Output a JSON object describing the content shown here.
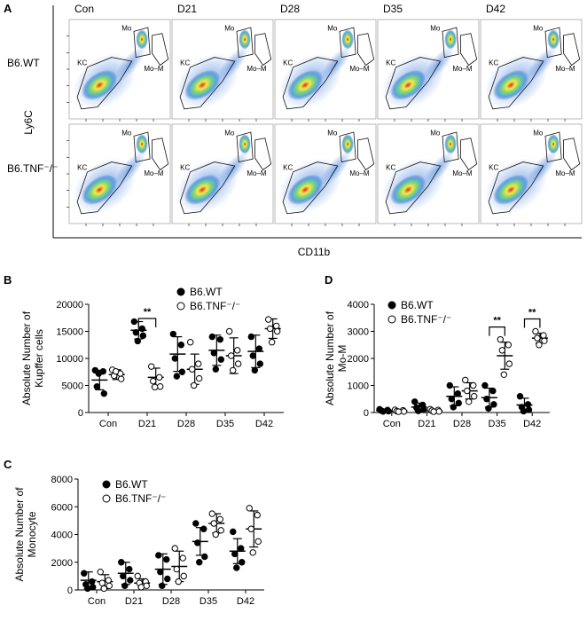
{
  "panelA": {
    "letter": "A",
    "columns": [
      "Con",
      "D21",
      "D28",
      "D35",
      "D42"
    ],
    "rows": [
      "B6.WT",
      "B6.TNF⁻/⁻"
    ],
    "gates": {
      "kc": "KC",
      "mo": "Mo",
      "mom": "Mo–M"
    },
    "xlabel": "CD11b",
    "ylabel": "Ly6C"
  },
  "chart_data": [
    {
      "panel": "B",
      "type": "scatter",
      "categories": [
        "Con",
        "D21",
        "D28",
        "D35",
        "D42"
      ],
      "ylabel": "Absolute Number of Kupffer cells",
      "ylabel_lines": [
        "Absolute Number of",
        "Kupffer cells"
      ],
      "ylim": [
        0,
        20000
      ],
      "yticks": [
        0,
        5000,
        10000,
        15000,
        20000
      ],
      "legend_position": "top-right",
      "significance": [
        {
          "category": "D21",
          "label": "**"
        }
      ],
      "series": [
        {
          "name": "B6.WT",
          "marker": "filled",
          "mean": [
            6000,
            15200,
            10800,
            11500,
            11300
          ],
          "sd": [
            1800,
            1600,
            3200,
            2800,
            3000
          ],
          "points": [
            [
              7800,
              7600,
              4800,
              3500,
              7200
            ],
            [
              16800,
              15500,
              14800,
              14200,
              13200
            ],
            [
              14500,
              12500,
              10000,
              7500,
              6700
            ],
            [
              14000,
              13500,
              11000,
              9800,
              8000
            ],
            [
              14000,
              11800,
              10500,
              9000,
              7800
            ]
          ]
        },
        {
          "name": "B6.TNF⁻/⁻",
          "marker": "open",
          "mean": [
            7000,
            6500,
            8000,
            10500,
            15500
          ],
          "sd": [
            900,
            1700,
            2800,
            3300,
            1800
          ],
          "points": [
            [
              7900,
              7200,
              6800,
              6200,
              7600
            ],
            [
              8500,
              6500,
              5800,
              4800,
              4700
            ],
            [
              13000,
              9000,
              8000,
              6300,
              5000
            ],
            [
              15000,
              11500,
              10500,
              9000,
              7800
            ],
            [
              17200,
              16000,
              15500,
              15000,
              13000
            ]
          ]
        }
      ]
    },
    {
      "panel": "C",
      "type": "scatter",
      "categories": [
        "Con",
        "D21",
        "D28",
        "D35",
        "D42"
      ],
      "ylabel": "Absolute Number of Monocyte",
      "ylabel_lines": [
        "Absolute Number of",
        "Monocyte"
      ],
      "ylim": [
        0,
        8000
      ],
      "yticks": [
        0,
        2000,
        4000,
        6000,
        8000
      ],
      "legend_position": "top-left",
      "significance": [],
      "series": [
        {
          "name": "B6.WT",
          "marker": "filled",
          "mean": [
            700,
            1200,
            1500,
            3500,
            2800
          ],
          "sd": [
            600,
            800,
            1100,
            1000,
            900
          ],
          "points": [
            [
              1200,
              600,
              400,
              200,
              100
            ],
            [
              2000,
              1500,
              1000,
              700,
              300
            ],
            [
              2500,
              2200,
              1300,
              800,
              300
            ],
            [
              4800,
              4400,
              3400,
              2400,
              2000
            ],
            [
              4200,
              3000,
              2600,
              2000,
              1600
            ]
          ]
        },
        {
          "name": "B6.TNF⁻/⁻",
          "marker": "open",
          "mean": [
            600,
            500,
            1700,
            4800,
            4400
          ],
          "sd": [
            500,
            300,
            1100,
            700,
            1300
          ],
          "points": [
            [
              1300,
              700,
              500,
              300,
              100
            ],
            [
              1000,
              600,
              500,
              300,
              200
            ],
            [
              3000,
              2300,
              1500,
              1000,
              600
            ],
            [
              5500,
              5100,
              4800,
              4300,
              4000
            ],
            [
              5900,
              5400,
              4400,
              3500,
              2700
            ]
          ]
        }
      ]
    },
    {
      "panel": "D",
      "type": "scatter",
      "categories": [
        "Con",
        "D21",
        "D28",
        "D35",
        "D42"
      ],
      "ylabel": "Absolute Number of Mo-M",
      "ylabel_lines": [
        "Absolute Number of",
        "Mo-M"
      ],
      "ylim": [
        0,
        4000
      ],
      "yticks": [
        0,
        1000,
        2000,
        3000,
        4000
      ],
      "legend_position": "top-left",
      "significance": [
        {
          "category": "D35",
          "label": "**"
        },
        {
          "category": "D42",
          "label": "**"
        }
      ],
      "series": [
        {
          "name": "B6.WT",
          "marker": "filled",
          "mean": [
            80,
            200,
            600,
            550,
            280
          ],
          "sd": [
            40,
            150,
            350,
            350,
            250
          ],
          "points": [
            [
              120,
              90,
              70,
              50,
              40
            ],
            [
              400,
              280,
              180,
              100,
              60
            ],
            [
              1000,
              700,
              500,
              350,
              200
            ],
            [
              1000,
              800,
              500,
              300,
              150
            ],
            [
              600,
              300,
              200,
              100,
              50
            ]
          ]
        },
        {
          "name": "B6.TNF⁻/⁻",
          "marker": "open",
          "mean": [
            60,
            70,
            800,
            2100,
            2750
          ],
          "sd": [
            40,
            40,
            300,
            500,
            180
          ],
          "points": [
            [
              100,
              80,
              50,
              40,
              30
            ],
            [
              120,
              90,
              70,
              40,
              30
            ],
            [
              1200,
              1000,
              800,
              600,
              400
            ],
            [
              2700,
              2500,
              2300,
              1800,
              1400
            ],
            [
              3000,
              2850,
              2750,
              2650,
              2500
            ]
          ]
        }
      ]
    }
  ]
}
